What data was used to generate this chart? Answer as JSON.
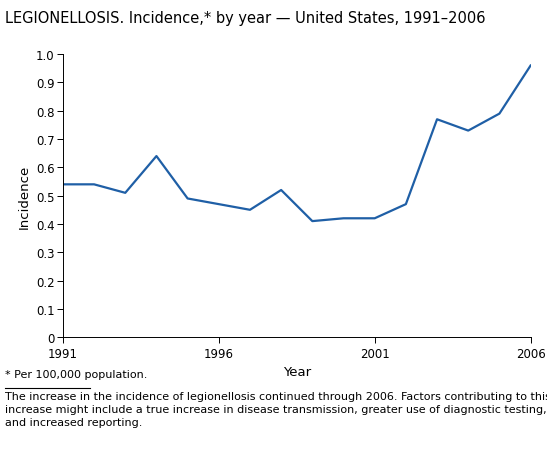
{
  "title": "LEGIONELLOSIS. Incidence,* by year — United States, 1991–2006",
  "xlabel": "Year",
  "ylabel": "Incidence",
  "years": [
    1991,
    1992,
    1993,
    1994,
    1995,
    1996,
    1997,
    1998,
    1999,
    2000,
    2001,
    2002,
    2003,
    2004,
    2005,
    2006
  ],
  "values": [
    0.54,
    0.54,
    0.51,
    0.64,
    0.49,
    0.47,
    0.45,
    0.52,
    0.41,
    0.42,
    0.42,
    0.47,
    0.77,
    0.73,
    0.79,
    0.96
  ],
  "line_color": "#1f5fa6",
  "line_width": 1.6,
  "ylim": [
    0,
    1.0
  ],
  "yticks": [
    0,
    0.1,
    0.2,
    0.3,
    0.4,
    0.5,
    0.6,
    0.7,
    0.8,
    0.9,
    1.0
  ],
  "ytick_labels": [
    "0",
    "0.1",
    "0.2",
    "0.3",
    "0.4",
    "0.5",
    "0.6",
    "0.7",
    "0.8",
    "0.9",
    "1.0"
  ],
  "xticks": [
    1991,
    1996,
    2001,
    2006
  ],
  "background_color": "#ffffff",
  "footnote_star": "* Per 100,000 population.",
  "footnote_text": "The increase in the incidence of legionellosis continued through 2006. Factors contributing to this\nincrease might include a true increase in disease transmission, greater use of diagnostic testing,\nand increased reporting.",
  "title_fontsize": 10.5,
  "axis_label_fontsize": 9.5,
  "tick_fontsize": 8.5,
  "footnote_fontsize": 8.0
}
